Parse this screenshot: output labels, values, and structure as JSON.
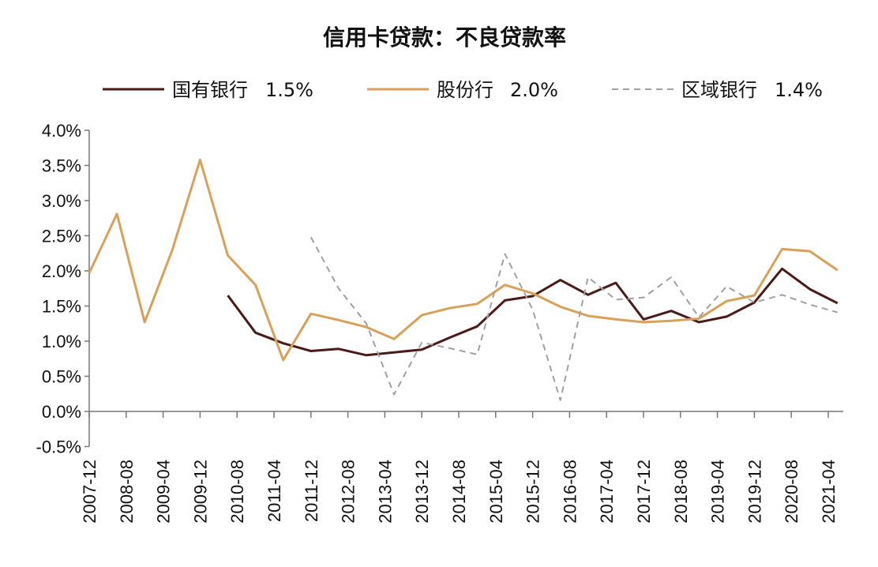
{
  "chart_data": {
    "type": "line",
    "title": "信用卡贷款：不良贷款率",
    "xlabel": "",
    "ylabel": "",
    "ylim": [
      -0.5,
      4.0
    ],
    "y_ticks": [
      "-0.5%",
      "0.0%",
      "0.5%",
      "1.0%",
      "1.5%",
      "2.0%",
      "2.5%",
      "3.0%",
      "3.5%",
      "4.0%"
    ],
    "x_ticks": [
      "2007-12",
      "2008-08",
      "2009-04",
      "2009-12",
      "2010-08",
      "2011-04",
      "2011-12",
      "2012-08",
      "2013-04",
      "2013-12",
      "2014-08",
      "2015-04",
      "2015-12",
      "2016-08",
      "2017-04",
      "2017-12",
      "2018-08",
      "2019-04",
      "2019-12",
      "2020-08",
      "2021-04"
    ],
    "x": [
      "2007-12",
      "2008-06",
      "2008-12",
      "2009-06",
      "2009-12",
      "2010-06",
      "2010-12",
      "2011-06",
      "2011-12",
      "2012-06",
      "2012-12",
      "2013-06",
      "2013-12",
      "2014-06",
      "2014-12",
      "2015-06",
      "2015-12",
      "2016-06",
      "2016-12",
      "2017-06",
      "2017-12",
      "2018-06",
      "2018-12",
      "2019-06",
      "2019-12",
      "2020-06",
      "2020-12",
      "2021-06"
    ],
    "grid": false,
    "legend_position": "top",
    "series": [
      {
        "name": "国有银行",
        "legend_value": "1.5%",
        "color": "#4a1a16",
        "style": "solid",
        "values": [
          null,
          null,
          null,
          null,
          null,
          1.65,
          1.12,
          0.97,
          0.86,
          0.89,
          0.8,
          0.84,
          0.88,
          1.05,
          1.21,
          1.58,
          1.64,
          1.87,
          1.66,
          1.83,
          1.31,
          1.43,
          1.27,
          1.35,
          1.55,
          2.03,
          1.74,
          1.54
        ]
      },
      {
        "name": "股份行",
        "legend_value": "2.0%",
        "color": "#d9a05a",
        "style": "solid",
        "values": [
          1.97,
          2.81,
          1.27,
          2.3,
          3.58,
          2.22,
          1.8,
          0.73,
          1.39,
          1.3,
          1.2,
          1.03,
          1.37,
          1.47,
          1.53,
          1.8,
          1.68,
          1.49,
          1.36,
          1.31,
          1.27,
          1.29,
          1.32,
          1.57,
          1.65,
          2.31,
          2.28,
          2.01
        ]
      },
      {
        "name": "区域银行",
        "legend_value": "1.4%",
        "color": "#a0a0a0",
        "style": "dashed",
        "values": [
          null,
          null,
          null,
          null,
          null,
          null,
          null,
          null,
          2.48,
          1.75,
          1.25,
          0.24,
          0.98,
          0.9,
          0.81,
          2.24,
          1.45,
          0.16,
          1.91,
          1.59,
          1.62,
          1.91,
          1.34,
          1.78,
          1.55,
          1.66,
          1.52,
          1.41
        ]
      }
    ]
  }
}
